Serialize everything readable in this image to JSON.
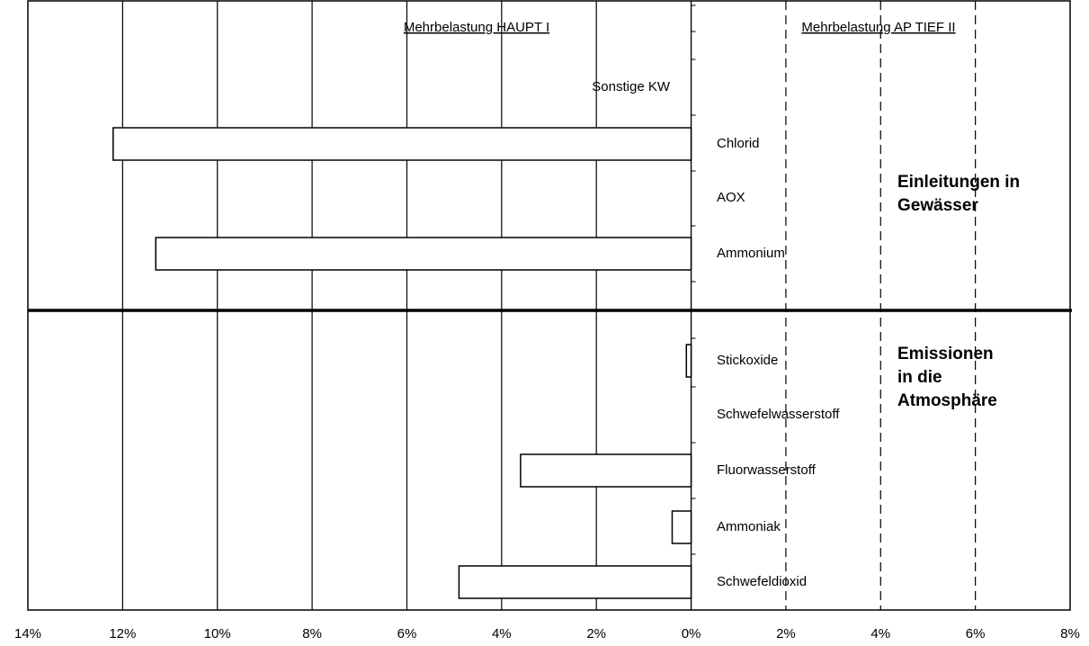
{
  "chart_data": {
    "type": "hbar",
    "left_title": "Mehrbelastung HAUPT I",
    "right_title": "Mehrbelastung AP TIEF II",
    "region_labels": [
      "Einleitungen in Gewässer",
      "Emissionen in die Atmosphäre"
    ],
    "categories": [
      "Sonstige KW",
      "Chlorid",
      "AOX",
      "Ammonium",
      "Stickoxide",
      "Schwefelwasserstoff",
      "Fluorwasserstoff",
      "Ammoniak",
      "Schwefeldioxid"
    ],
    "values": [
      null,
      -12.2,
      null,
      -11.3,
      -0.1,
      null,
      -3.6,
      -0.4,
      -4.9
    ],
    "color": "#ffffff",
    "xlim": [
      -14,
      8
    ],
    "xticks": [
      {
        "value": -14,
        "label": "14%"
      },
      {
        "value": -12,
        "label": "12%"
      },
      {
        "value": -10,
        "label": "10%"
      },
      {
        "value": -8,
        "label": "8%"
      },
      {
        "value": -6,
        "label": "6%"
      },
      {
        "value": -4,
        "label": "4%"
      },
      {
        "value": -2,
        "label": "2%"
      },
      {
        "value": 0,
        "label": "0%"
      },
      {
        "value": 2,
        "label": "2%"
      },
      {
        "value": 4,
        "label": "4%"
      },
      {
        "value": 6,
        "label": "6%"
      },
      {
        "value": 8,
        "label": "8%"
      }
    ],
    "grid": true
  }
}
